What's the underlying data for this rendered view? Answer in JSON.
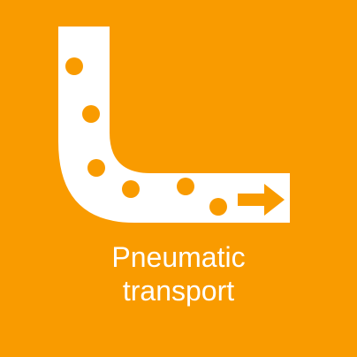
{
  "tile": {
    "background_color": "#F99B00",
    "foreground_color": "#FFFFFF",
    "icon": "pneumatic-transport-pipe-icon",
    "label_line1": "Pneumatic",
    "label_line2": "transport"
  }
}
